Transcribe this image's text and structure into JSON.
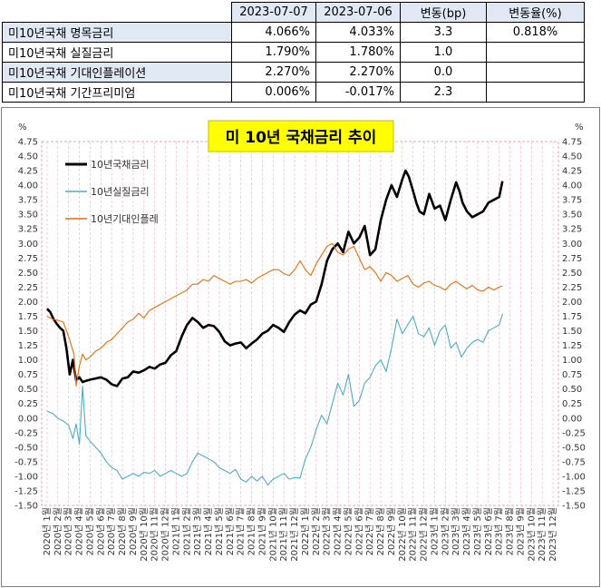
{
  "table": {
    "headers": [
      "",
      "2023-07-07",
      "2023-07-06",
      "변동(bp)",
      "변동율(%)"
    ],
    "rows": [
      {
        "label": "미10년국채 명목금리",
        "v1": "4.066%",
        "v2": "4.033%",
        "change_bp": "3.3",
        "change_pct": "0.818%"
      },
      {
        "label": "미10년국채 실질금리",
        "v1": "1.790%",
        "v2": "1.780%",
        "change_bp": "1.0",
        "change_pct": ""
      },
      {
        "label": "미10년국채 기대인플레이션",
        "v1": "2.270%",
        "v2": "2.270%",
        "change_bp": "0.0",
        "change_pct": ""
      },
      {
        "label": "미10년국채 기간프리미엄",
        "v1": "0.006%",
        "v2": "-0.017%",
        "change_bp": "2.3",
        "change_pct": ""
      }
    ]
  },
  "chart_data": {
    "type": "line",
    "title": "미 10년  국채금리  추이",
    "ylabel_left": "%",
    "ylabel_right": "%",
    "ylim": [
      -1.5,
      4.75
    ],
    "ytick_step": 0.25,
    "grid": "vertical dashed pink",
    "legend_position": "top-left",
    "x_ticks": [
      "2020년 1월",
      "2020년 2월",
      "2020년 3월",
      "2020년 4월",
      "2020년 5월",
      "2020년 6월",
      "2020년 7월",
      "2020년 8월",
      "2020년 9월",
      "2020년 10월",
      "2020년 11월",
      "2020년 12월",
      "2021년 1월",
      "2021년 2월",
      "2021년 3월",
      "2021년 4월",
      "2021년 5월",
      "2021년 6월",
      "2021년 7월",
      "2021년 8월",
      "2021년 9월",
      "2021년 10월",
      "2021년 11월",
      "2021년 12월",
      "2022년 1월",
      "2022년 2월",
      "2022년 3월",
      "2022년 4월",
      "2022년 5월",
      "2022년 6월",
      "2022년 7월",
      "2022년 8월",
      "2022년 9월",
      "2022년 10월",
      "2022년 11월",
      "2022년 12월",
      "2023년 1월",
      "2023년 2월",
      "2023년 3월",
      "2023년 4월",
      "2023년 5월",
      "2023년 6월",
      "2023년 7월",
      "2023년 8월",
      "2023년 9월",
      "2023년 10월",
      "2023년 11월",
      "2023년 12월"
    ],
    "series": [
      {
        "name": "10년국채금리",
        "color": "#000000",
        "x": [
          0,
          0.3,
          0.6,
          0.9,
          1.2,
          1.5,
          1.8,
          2.1,
          2.4,
          2.7,
          3.0,
          3.3,
          3.6,
          4.0,
          4.5,
          5.0,
          5.5,
          6.0,
          6.5,
          7.0,
          7.5,
          8.0,
          8.5,
          9.0,
          9.5,
          10.0,
          10.5,
          11.0,
          11.5,
          12.0,
          12.5,
          13.0,
          13.5,
          14.0,
          14.5,
          15.0,
          15.5,
          16.0,
          16.5,
          17.0,
          17.5,
          18.0,
          18.5,
          19.0,
          19.5,
          20.0,
          20.5,
          21.0,
          21.5,
          22.0,
          22.5,
          23.0,
          23.5,
          24.0,
          24.5,
          25.0,
          25.5,
          26.0,
          26.5,
          27.0,
          27.5,
          28.0,
          28.5,
          29.0,
          29.5,
          30.0,
          30.5,
          31.0,
          31.5,
          32.0,
          32.5,
          33.0,
          33.3,
          33.6,
          34.0,
          34.3,
          34.6,
          35.0,
          35.5,
          36.0,
          36.5,
          37.0,
          37.5,
          38.0,
          38.3,
          38.6,
          39.0,
          39.5,
          40.0,
          40.5,
          41.0,
          41.5,
          42.0,
          42.3
        ],
        "values": [
          1.88,
          1.82,
          1.7,
          1.62,
          1.55,
          1.5,
          1.2,
          0.75,
          1.0,
          0.65,
          0.7,
          0.62,
          0.64,
          0.66,
          0.68,
          0.7,
          0.66,
          0.58,
          0.55,
          0.68,
          0.7,
          0.8,
          0.78,
          0.82,
          0.88,
          0.85,
          0.92,
          0.95,
          1.08,
          1.15,
          1.4,
          1.6,
          1.72,
          1.65,
          1.55,
          1.6,
          1.58,
          1.48,
          1.32,
          1.25,
          1.28,
          1.3,
          1.2,
          1.28,
          1.35,
          1.45,
          1.5,
          1.6,
          1.55,
          1.48,
          1.65,
          1.78,
          1.85,
          1.8,
          1.95,
          2.0,
          2.3,
          2.7,
          2.9,
          3.0,
          2.85,
          3.2,
          3.0,
          3.1,
          3.3,
          2.8,
          2.9,
          3.4,
          3.75,
          4.0,
          3.8,
          4.1,
          4.25,
          4.15,
          3.9,
          3.7,
          3.55,
          3.5,
          3.85,
          3.6,
          3.65,
          3.4,
          3.75,
          4.05,
          3.9,
          3.7,
          3.55,
          3.45,
          3.5,
          3.55,
          3.7,
          3.75,
          3.8,
          4.07
        ]
      },
      {
        "name": "10년실질금리",
        "color": "#4bacc6",
        "x": [
          0,
          0.5,
          1.0,
          1.5,
          2.0,
          2.4,
          2.7,
          3.0,
          3.3,
          3.6,
          4.0,
          4.5,
          5.0,
          5.5,
          6.0,
          6.5,
          7.0,
          7.5,
          8.0,
          8.5,
          9.0,
          9.5,
          10.0,
          10.5,
          11.0,
          11.5,
          12.0,
          12.5,
          13.0,
          13.5,
          14.0,
          14.5,
          15.0,
          15.5,
          16.0,
          16.5,
          17.0,
          17.5,
          18.0,
          18.5,
          19.0,
          19.5,
          20.0,
          20.5,
          21.0,
          21.5,
          22.0,
          22.5,
          23.0,
          23.5,
          24.0,
          24.5,
          25.0,
          25.5,
          26.0,
          26.5,
          27.0,
          27.5,
          28.0,
          28.5,
          29.0,
          29.5,
          30.0,
          30.5,
          31.0,
          31.5,
          32.0,
          32.5,
          33.0,
          33.5,
          34.0,
          34.5,
          35.0,
          35.5,
          36.0,
          36.5,
          37.0,
          37.5,
          38.0,
          38.5,
          39.0,
          39.5,
          40.0,
          40.5,
          41.0,
          41.5,
          42.0,
          42.3
        ],
        "values": [
          0.12,
          0.08,
          0.0,
          -0.05,
          -0.12,
          -0.35,
          -0.1,
          -0.45,
          0.55,
          -0.3,
          -0.4,
          -0.5,
          -0.6,
          -0.75,
          -0.85,
          -0.9,
          -1.05,
          -1.0,
          -0.95,
          -1.0,
          -0.93,
          -0.95,
          -0.9,
          -1.0,
          -0.95,
          -0.9,
          -0.95,
          -1.0,
          -0.95,
          -0.75,
          -0.6,
          -0.65,
          -0.7,
          -0.75,
          -0.85,
          -0.9,
          -0.95,
          -0.88,
          -1.05,
          -1.1,
          -1.0,
          -1.08,
          -1.0,
          -1.15,
          -1.05,
          -1.0,
          -0.95,
          -1.05,
          -1.02,
          -1.03,
          -0.7,
          -0.5,
          -0.2,
          0.05,
          -0.1,
          0.25,
          0.6,
          0.4,
          0.75,
          0.2,
          0.3,
          0.6,
          0.7,
          0.9,
          1.0,
          0.8,
          1.2,
          1.7,
          1.45,
          1.6,
          1.75,
          1.45,
          1.4,
          1.55,
          1.25,
          1.5,
          1.6,
          1.2,
          1.3,
          1.05,
          1.2,
          1.3,
          1.35,
          1.3,
          1.5,
          1.55,
          1.6,
          1.79
        ]
      },
      {
        "name": "10년기대인플레",
        "color": "#e46c0a",
        "x": [
          0,
          0.5,
          1.0,
          1.5,
          2.0,
          2.5,
          2.7,
          3.0,
          3.3,
          3.6,
          4.0,
          4.5,
          5.0,
          5.5,
          6.0,
          6.5,
          7.0,
          7.5,
          8.0,
          8.5,
          9.0,
          9.5,
          10.0,
          10.5,
          11.0,
          11.5,
          12.0,
          12.5,
          13.0,
          13.5,
          14.0,
          14.5,
          15.0,
          15.5,
          16.0,
          16.5,
          17.0,
          17.5,
          18.0,
          18.5,
          19.0,
          19.5,
          20.0,
          20.5,
          21.0,
          21.5,
          22.0,
          22.5,
          23.0,
          23.5,
          24.0,
          24.5,
          25.0,
          25.5,
          26.0,
          26.5,
          27.0,
          27.5,
          28.0,
          28.5,
          29.0,
          29.5,
          30.0,
          30.5,
          31.0,
          31.5,
          32.0,
          32.5,
          33.0,
          33.5,
          34.0,
          34.5,
          35.0,
          35.5,
          36.0,
          36.5,
          37.0,
          37.5,
          38.0,
          38.5,
          39.0,
          39.5,
          40.0,
          40.5,
          41.0,
          41.5,
          42.0,
          42.3
        ],
        "values": [
          1.75,
          1.7,
          1.68,
          1.65,
          1.4,
          1.1,
          0.55,
          0.9,
          1.1,
          1.0,
          1.05,
          1.15,
          1.2,
          1.3,
          1.35,
          1.45,
          1.55,
          1.65,
          1.7,
          1.8,
          1.72,
          1.85,
          1.9,
          1.95,
          2.0,
          2.05,
          2.1,
          2.15,
          2.2,
          2.3,
          2.3,
          2.38,
          2.35,
          2.45,
          2.4,
          2.35,
          2.3,
          2.35,
          2.35,
          2.38,
          2.32,
          2.4,
          2.45,
          2.5,
          2.55,
          2.55,
          2.48,
          2.45,
          2.55,
          2.7,
          2.55,
          2.45,
          2.65,
          2.8,
          2.95,
          3.0,
          2.85,
          2.8,
          2.9,
          2.95,
          2.75,
          2.55,
          2.6,
          2.5,
          2.35,
          2.5,
          2.45,
          2.35,
          2.4,
          2.45,
          2.3,
          2.25,
          2.32,
          2.35,
          2.28,
          2.25,
          2.2,
          2.3,
          2.35,
          2.28,
          2.22,
          2.28,
          2.2,
          2.18,
          2.25,
          2.2,
          2.25,
          2.27
        ]
      }
    ]
  }
}
